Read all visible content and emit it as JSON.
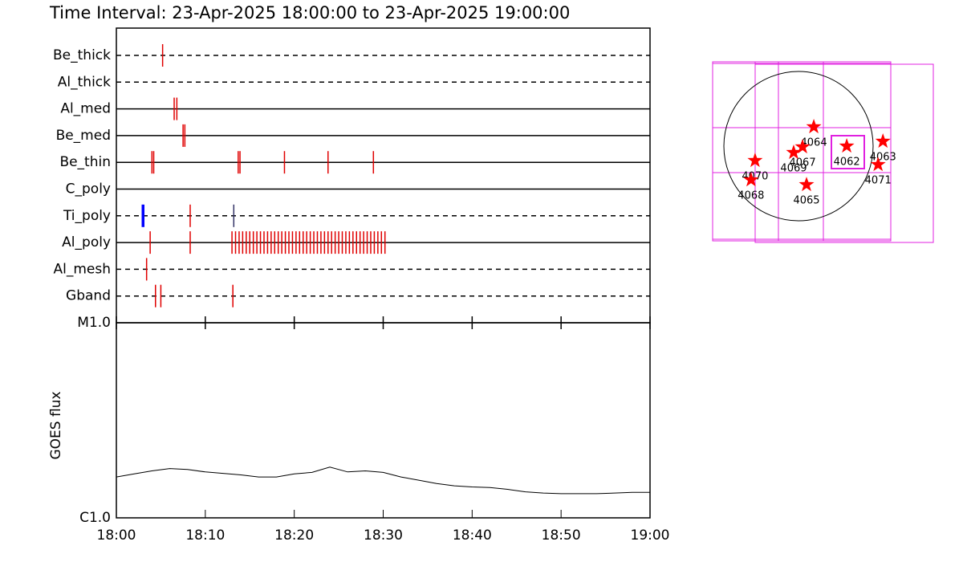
{
  "chart_data": [
    {
      "type": "timeline",
      "title": "Time Interval: 23-Apr-2025 18:00:00 to 23-Apr-2025 19:00:00",
      "xlim": [
        0,
        60
      ],
      "rows": [
        {
          "name": "Be_thick",
          "style": "dashed",
          "color": "#e00000",
          "times": [
            5.2
          ]
        },
        {
          "name": "Al_thick",
          "style": "dashed",
          "color": "#e00000",
          "times": []
        },
        {
          "name": "Al_med",
          "style": "solid",
          "color": "#e00000",
          "times": [
            6.5,
            6.8
          ]
        },
        {
          "name": "Be_med",
          "style": "solid",
          "color": "#e00000",
          "times": [
            7.5,
            7.7
          ]
        },
        {
          "name": "Be_thin",
          "style": "solid",
          "color": "#e00000",
          "times": [
            4.0,
            4.2,
            13.7,
            13.9,
            18.9,
            23.8,
            28.9
          ]
        },
        {
          "name": "C_poly",
          "style": "solid",
          "color": "#e00000",
          "times": []
        },
        {
          "name": "Ti_poly",
          "style": "dashed",
          "color": "#e00000",
          "times": [
            3.0,
            8.3,
            13.2
          ],
          "colors": [
            "#0000ff",
            "#e00000",
            "#333366"
          ]
        },
        {
          "name": "Al_poly",
          "style": "solid",
          "color": "#e00000",
          "times": [
            3.8,
            8.3,
            13.0,
            13.4,
            13.8,
            14.2,
            14.6,
            15.0,
            15.4,
            15.8,
            16.2,
            16.6,
            17.0,
            17.4,
            17.8,
            18.2,
            18.6,
            19.0,
            19.4,
            19.8,
            20.2,
            20.6,
            21.0,
            21.4,
            21.8,
            22.2,
            22.6,
            23.0,
            23.4,
            23.8,
            24.2,
            24.6,
            25.0,
            25.4,
            25.8,
            26.2,
            26.6,
            27.0,
            27.4,
            27.8,
            28.2,
            28.6,
            29.0,
            29.4,
            29.8,
            30.2
          ]
        },
        {
          "name": "Al_mesh",
          "style": "dashed",
          "color": "#e00000",
          "times": [
            3.4
          ]
        },
        {
          "name": "Gband",
          "style": "dashed",
          "color": "#e00000",
          "times": [
            4.4,
            5.0,
            13.1
          ]
        }
      ]
    },
    {
      "type": "line",
      "y_label": "GOES flux",
      "log_scale": true,
      "color": "#000000",
      "x": [
        0,
        2,
        4,
        6,
        8,
        10,
        12,
        14,
        16,
        18,
        20,
        22,
        24,
        26,
        28,
        30,
        32,
        34,
        36,
        38,
        40,
        42,
        44,
        46,
        48,
        50,
        52,
        54,
        56,
        58,
        60
      ],
      "values": [
        1.62e-06,
        1.68e-06,
        1.74e-06,
        1.79e-06,
        1.77e-06,
        1.72e-06,
        1.69e-06,
        1.66e-06,
        1.62e-06,
        1.62e-06,
        1.68e-06,
        1.71e-06,
        1.82e-06,
        1.72e-06,
        1.74e-06,
        1.71e-06,
        1.62e-06,
        1.56e-06,
        1.5e-06,
        1.46e-06,
        1.44e-06,
        1.43e-06,
        1.4e-06,
        1.36e-06,
        1.34e-06,
        1.33e-06,
        1.33e-06,
        1.33e-06,
        1.34e-06,
        1.35e-06,
        1.35e-06
      ],
      "xlim": [
        0,
        60
      ],
      "xticks": [
        {
          "value": 0,
          "label": "18:00"
        },
        {
          "value": 10,
          "label": "18:10"
        },
        {
          "value": 20,
          "label": "18:20"
        },
        {
          "value": 30,
          "label": "18:30"
        },
        {
          "value": 40,
          "label": "18:40"
        },
        {
          "value": 50,
          "label": "18:50"
        },
        {
          "value": 60,
          "label": "19:00"
        }
      ],
      "ylim": [
        1e-06,
        1e-05
      ],
      "yticks": [
        {
          "value": 1e-06,
          "label": "C1.0"
        },
        {
          "value": 1e-05,
          "label": "M1.0"
        }
      ]
    },
    {
      "type": "scatter",
      "color": "#ff0000",
      "labels": [
        "4064",
        "4067",
        "4069",
        "4062",
        "4063",
        "4071",
        "4070",
        "4068",
        "4065"
      ],
      "x": [
        196,
        52,
        -62,
        618,
        1082,
        1020,
        -556,
        -608,
        103
      ],
      "values": [
        247,
        -10,
        -82,
        0,
        62,
        -237,
        -185,
        -433,
        -494
      ],
      "xlim": [
        -1100,
        1100
      ],
      "ylim": [
        -1100,
        1100
      ]
    }
  ]
}
